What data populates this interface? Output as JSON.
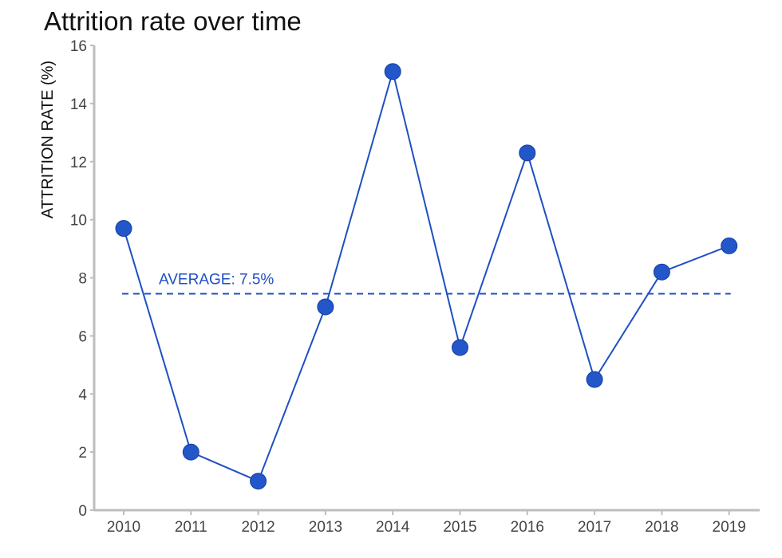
{
  "chart_data": {
    "type": "line",
    "title": "Attrition rate over time",
    "xlabel": "",
    "ylabel": "ATTRITION RATE (%)",
    "categories": [
      "2010",
      "2011",
      "2012",
      "2013",
      "2014",
      "2015",
      "2016",
      "2017",
      "2018",
      "2019"
    ],
    "values": [
      9.7,
      2.0,
      1.0,
      7.0,
      15.1,
      5.6,
      12.3,
      4.5,
      8.2,
      9.1
    ],
    "ylim": [
      0,
      16
    ],
    "yticks": [
      0,
      2,
      4,
      6,
      8,
      10,
      12,
      14,
      16
    ],
    "average": {
      "value": 7.45,
      "label": "AVERAGE: 7.5%"
    },
    "grid": false,
    "legend": "none",
    "colors": {
      "line": "#1f4fc4",
      "marker": "#2256c9",
      "average": "#1f4fc4",
      "axis": "#bdbdbd"
    }
  }
}
